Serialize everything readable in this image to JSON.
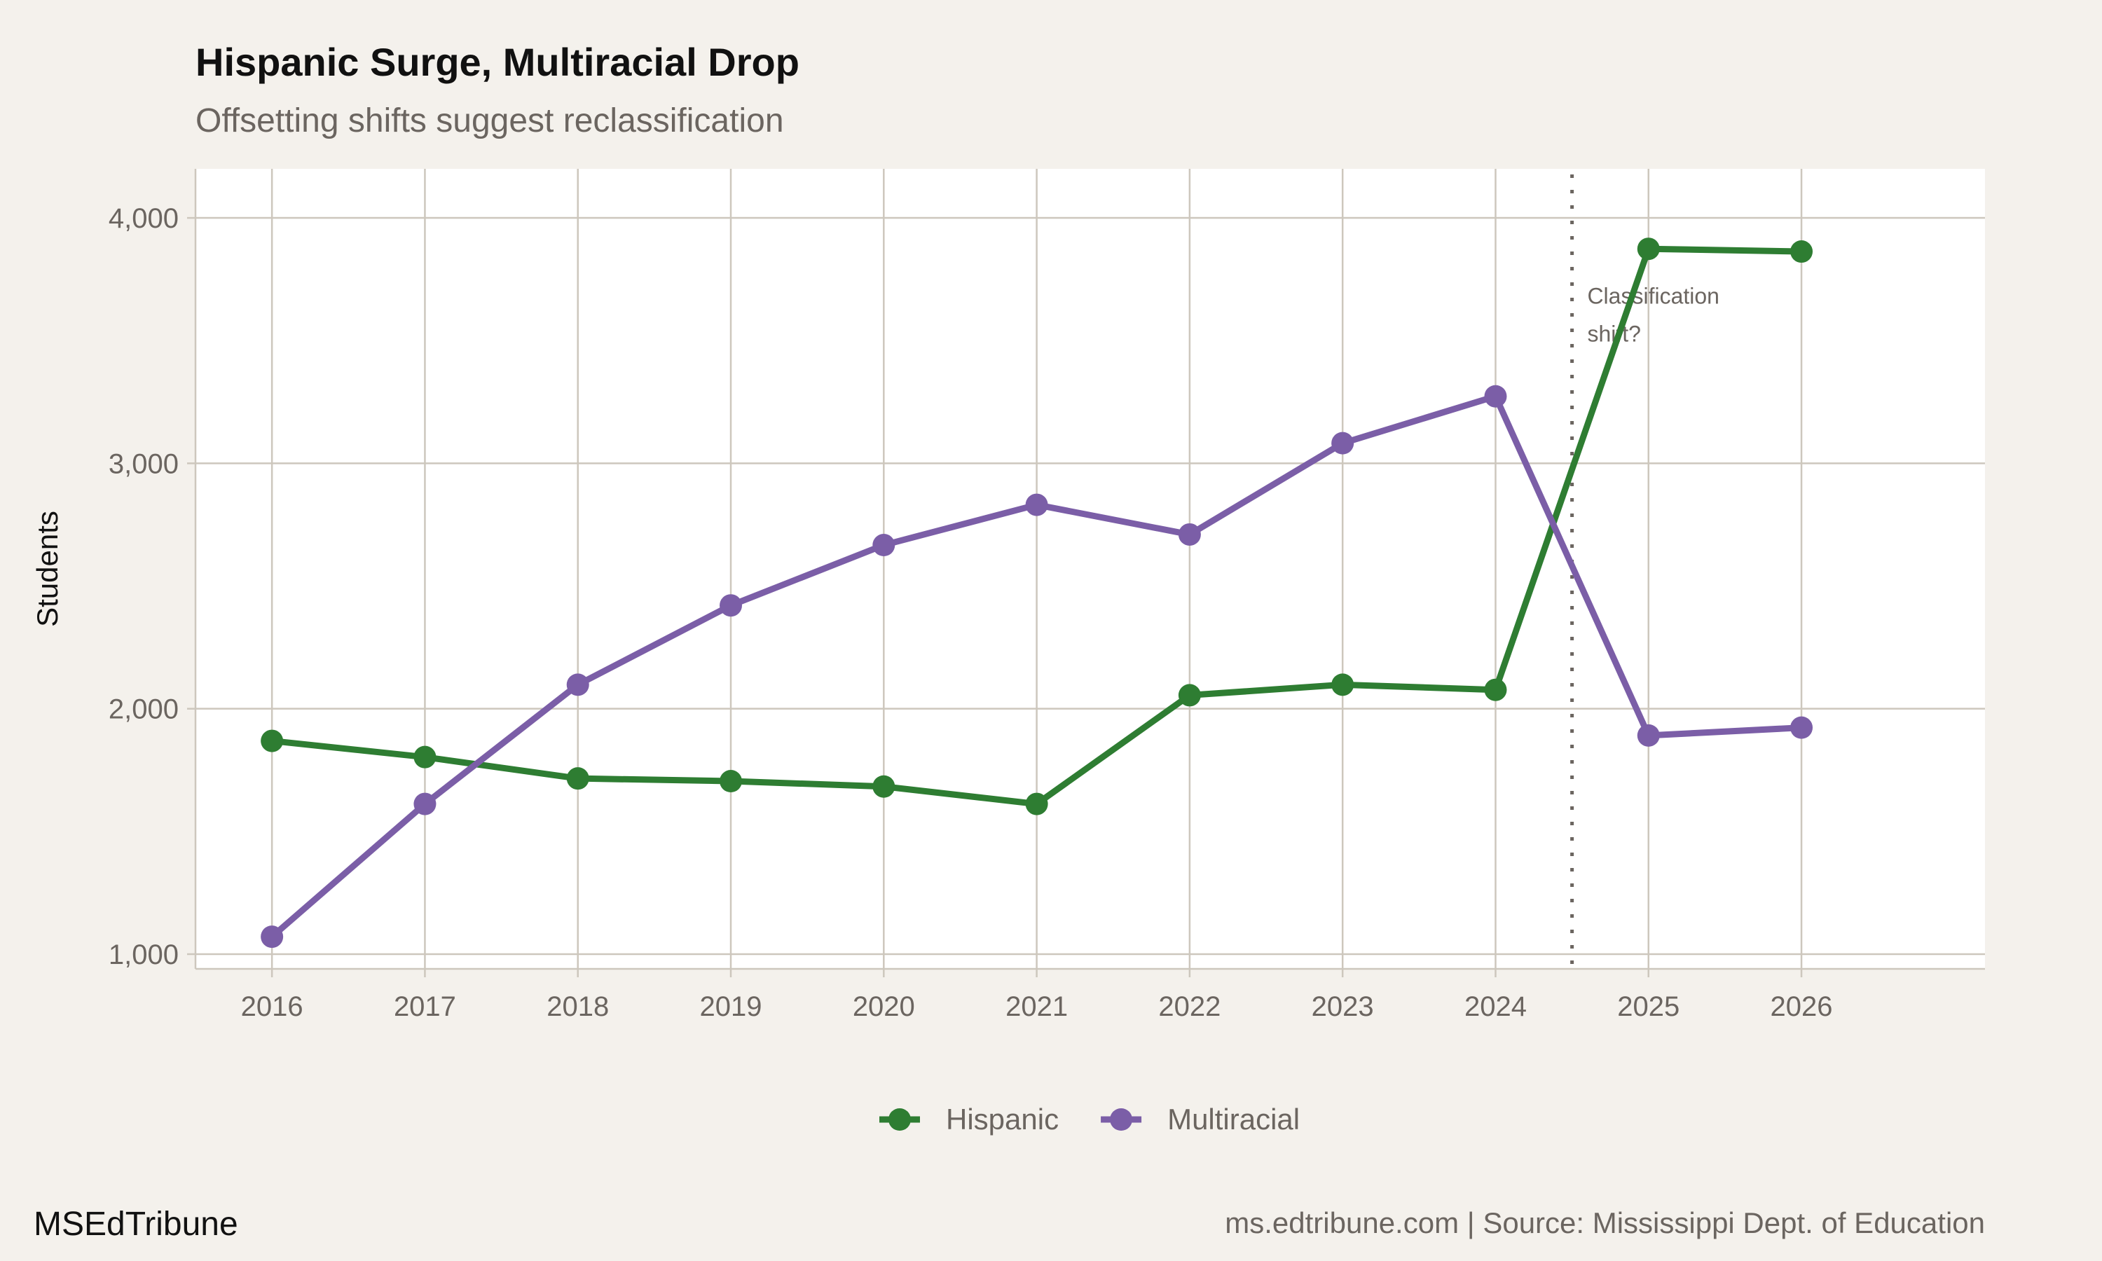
{
  "chart_data": {
    "type": "line",
    "title": "Hispanic Surge, Multiracial Drop",
    "subtitle": "Offsetting shifts suggest reclassification",
    "xlabel": "",
    "ylabel": "Students",
    "x": [
      2016,
      2017,
      2018,
      2019,
      2020,
      2021,
      2022,
      2023,
      2024,
      2025,
      2026
    ],
    "x_tick_labels": [
      "2016",
      "2017",
      "2018",
      "2019",
      "2020",
      "2021",
      "2022",
      "2023",
      "2024",
      "2025",
      "2026"
    ],
    "y_tick_values": [
      1000,
      2000,
      3000,
      4000
    ],
    "y_tick_labels": [
      "1,000",
      "2,000",
      "3,000",
      "4,000"
    ],
    "xlim": [
      2015.5,
      2027.2
    ],
    "ylim": [
      940,
      4200
    ],
    "grid": true,
    "legend_position": "bottom",
    "series": [
      {
        "name": "Hispanic",
        "color": "#2e7d32",
        "values": [
          1869,
          1803,
          1716,
          1705,
          1683,
          1612,
          2055,
          2098,
          2077,
          3874,
          3863
        ]
      },
      {
        "name": "Multiracial",
        "color": "#7b5ea7",
        "values": [
          1071,
          1612,
          2098,
          2421,
          2667,
          2831,
          2710,
          3082,
          3273,
          1891,
          1923
        ]
      }
    ],
    "annotations": [
      {
        "type": "vline",
        "x": 2024.5,
        "style": "dotted",
        "color": "#6b6560"
      },
      {
        "type": "text",
        "x": 2024.6,
        "y": 3650,
        "lines": [
          "Classification",
          "shift?"
        ]
      }
    ]
  },
  "footer": {
    "brand": "MSEdTribune",
    "source": "ms.edtribune.com | Source: Mississippi Dept. of Education"
  }
}
